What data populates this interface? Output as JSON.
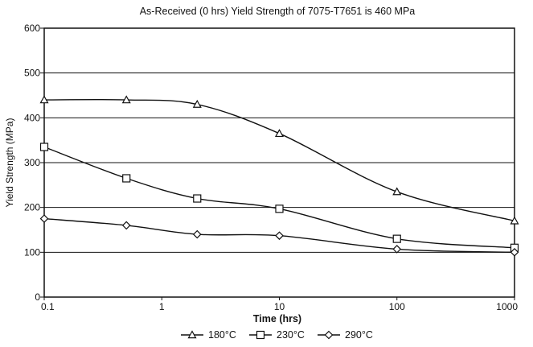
{
  "chart_data": {
    "type": "line",
    "title": "As-Received (0 hrs) Yield Strength of 7075-T7651 is 460 MPa",
    "xlabel": "Time (hrs)",
    "ylabel": "Yield Strength (MPa)",
    "x_scale": "log",
    "xlim": [
      0.1,
      1000
    ],
    "ylim": [
      0,
      600
    ],
    "xticks": [
      "0.1",
      "1",
      "10",
      "100",
      "1000"
    ],
    "yticks": [
      "0",
      "100",
      "200",
      "300",
      "400",
      "500",
      "600"
    ],
    "grid": "horizontal",
    "legend_position": "bottom",
    "series": [
      {
        "name": "180°C",
        "marker": "triangle",
        "x": [
          0.1,
          0.5,
          2,
          10,
          100,
          1000
        ],
        "y": [
          440,
          440,
          430,
          365,
          235,
          170
        ]
      },
      {
        "name": "230°C",
        "marker": "square",
        "x": [
          0.1,
          0.5,
          2,
          10,
          100,
          1000
        ],
        "y": [
          335,
          265,
          220,
          197,
          130,
          110
        ]
      },
      {
        "name": "290°C",
        "marker": "diamond",
        "x": [
          0.1,
          0.5,
          2,
          10,
          100,
          1000
        ],
        "y": [
          175,
          160,
          140,
          137,
          107,
          100
        ]
      }
    ]
  }
}
